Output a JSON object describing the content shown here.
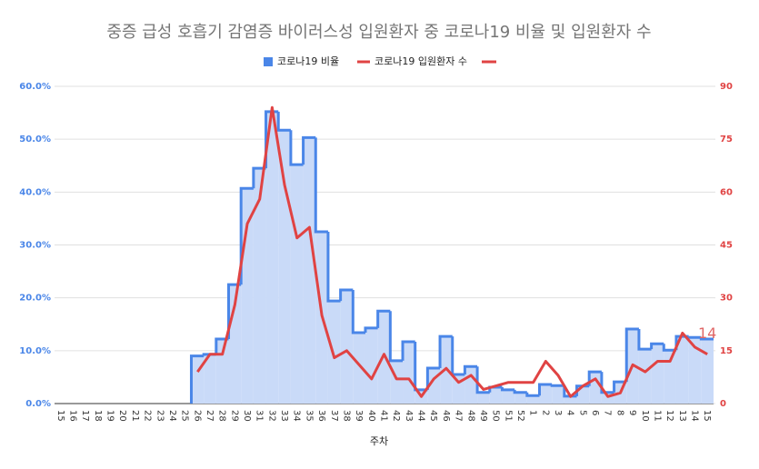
{
  "chart_data": {
    "type": "step-line",
    "title": "중증 급성 호흡기 감염증 바이러스성 입원환자 중 코로나19 비율 및 입원환자 수",
    "x_label": "주차",
    "categories": [
      "15",
      "16",
      "17",
      "18",
      "19",
      "20",
      "21",
      "22",
      "23",
      "24",
      "25",
      "26",
      "27",
      "28",
      "29",
      "30",
      "31",
      "32",
      "33",
      "34",
      "35",
      "36",
      "37",
      "38",
      "39",
      "40",
      "41",
      "42",
      "43",
      "44",
      "45",
      "46",
      "47",
      "48",
      "49",
      "50",
      "51",
      "52",
      "1",
      "2",
      "3",
      "4",
      "5",
      "6",
      "7",
      "8",
      "9",
      "10",
      "11",
      "12",
      "13",
      "14",
      "15"
    ],
    "ylim": [
      0,
      60
    ],
    "yticks": [
      {
        "value": 0,
        "label": "0.0%"
      },
      {
        "value": 10,
        "label": "10.0%"
      },
      {
        "value": 20,
        "label": "20.0%"
      },
      {
        "value": 30,
        "label": "30.0%"
      },
      {
        "value": 40,
        "label": "40.0%"
      },
      {
        "value": 50,
        "label": "50.0%"
      },
      {
        "value": 60,
        "label": "60.0%"
      }
    ],
    "y2lim": [
      0,
      90
    ],
    "y2ticks": [
      0,
      15,
      30,
      45,
      60,
      75,
      90
    ],
    "grid": true,
    "legend": "top",
    "series": [
      {
        "name": "코로나19 비율",
        "color": "#4a86e8",
        "fill": "#c9daf8",
        "kind": "step-area",
        "values": [
          null,
          null,
          null,
          null,
          null,
          null,
          null,
          null,
          null,
          null,
          null,
          9.0,
          9.3,
          12.2,
          22.5,
          40.7,
          44.5,
          55.2,
          51.7,
          45.2,
          50.3,
          32.5,
          19.4,
          21.5,
          13.4,
          14.3,
          17.5,
          8.1,
          11.7,
          2.6,
          6.7,
          12.7,
          5.5,
          7.0,
          2.1,
          3.1,
          2.6,
          2.1,
          1.5,
          3.6,
          3.4,
          1.4,
          3.3,
          6.0,
          2.1,
          4.1,
          14.1,
          10.3,
          11.3,
          10.1,
          12.7,
          12.5,
          12.2
        ]
      },
      {
        "name": "코로나19 입원환자 수",
        "color": "#e04343",
        "kind": "line",
        "axis": "y2",
        "values": [
          null,
          null,
          null,
          null,
          null,
          null,
          null,
          null,
          null,
          null,
          null,
          9,
          14,
          14,
          28,
          51,
          58,
          84,
          62,
          47,
          50,
          25,
          13,
          15,
          11,
          7,
          14,
          7,
          7,
          2,
          7,
          10,
          6,
          8,
          4,
          5,
          6,
          6,
          6,
          12,
          8,
          2,
          5,
          7,
          2,
          3,
          11,
          9,
          12,
          12,
          20,
          16,
          14
        ]
      }
    ]
  }
}
